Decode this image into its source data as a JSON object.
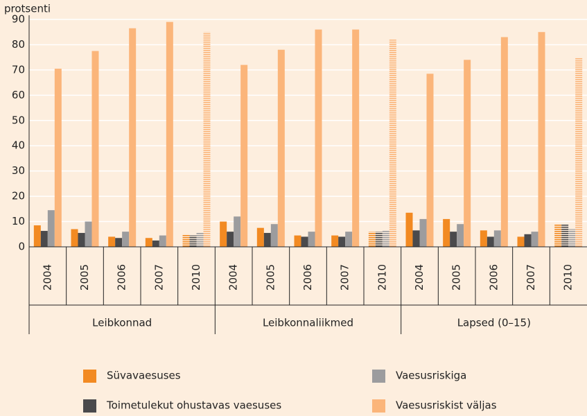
{
  "chart_data": {
    "type": "bar",
    "y_axis_label": "protsenti",
    "groups": [
      {
        "label": "Leibkonnad",
        "categories": [
          "2004",
          "2005",
          "2006",
          "2007",
          "2010"
        ]
      },
      {
        "label": "Leibkonnaliikmed",
        "categories": [
          "2004",
          "2005",
          "2006",
          "2007",
          "2010"
        ]
      },
      {
        "label": "Lapsed (0–15)",
        "categories": [
          "2004",
          "2005",
          "2006",
          "2007",
          "2010"
        ]
      }
    ],
    "series": [
      {
        "name": "Süvavaesuses",
        "color": "#f28a22",
        "values": [
          8.5,
          7,
          4,
          3.5,
          5,
          10,
          7.5,
          4.5,
          4.5,
          6,
          13.5,
          11,
          6.5,
          4,
          9
        ]
      },
      {
        "name": "Toimetulekut ohustavas vaesuses",
        "color": "#4a4a4c",
        "values": [
          6.3,
          5.5,
          3.5,
          2.5,
          4.5,
          6,
          5.5,
          4,
          4,
          6,
          6.5,
          6,
          4,
          5,
          9
        ]
      },
      {
        "name": "Vaesusriskiga",
        "color": "#9c9c9e",
        "values": [
          14.5,
          10,
          6,
          4.5,
          5.5,
          12,
          9,
          6,
          6,
          6.5,
          11,
          9,
          6.5,
          6,
          7
        ]
      },
      {
        "name": "Vaesusriskist väljas",
        "color": "#fbb57a",
        "values": [
          70.5,
          77.5,
          86.5,
          89,
          85,
          72,
          78,
          86,
          86,
          82,
          68.5,
          74,
          83,
          85,
          75
        ]
      }
    ],
    "ylim": [
      0,
      90
    ],
    "yticks": [
      0,
      10,
      20,
      30,
      40,
      50,
      60,
      70,
      80,
      90
    ],
    "grid": true,
    "hatch_last_category_in_group": true,
    "legend": "bottom"
  }
}
